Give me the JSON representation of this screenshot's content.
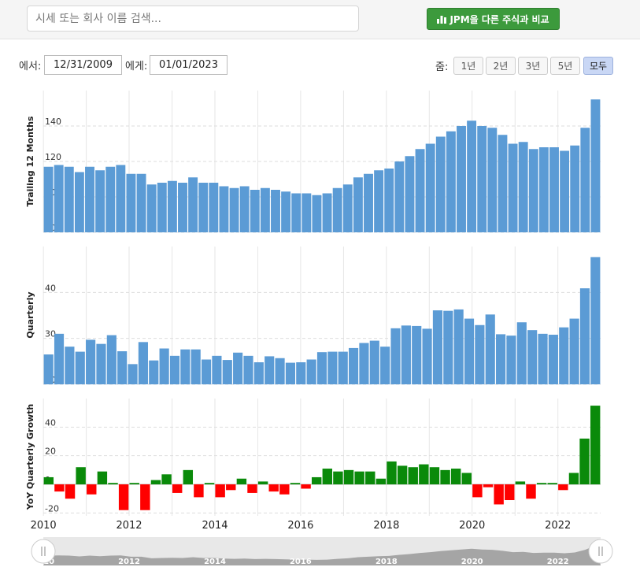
{
  "search": {
    "placeholder": "시세 또는 회사 이름 검색..."
  },
  "compare_button": {
    "label": "JPM을 다른 주식과 비교",
    "icon": "bar-chart-icon"
  },
  "date_range": {
    "from_label": "에서:",
    "from_value": "12/31/2009",
    "to_label": "에게:",
    "to_value": "01/01/2023"
  },
  "zoom": {
    "label": "줌:",
    "buttons": [
      "1년",
      "2년",
      "3년",
      "5년",
      "모두"
    ],
    "active": "모두"
  },
  "colors": {
    "bar": "#5b9bd5",
    "positive": "#0a8a0a",
    "negative": "#ff0000",
    "navigator": "#999999"
  },
  "chart_data": [
    {
      "type": "bar",
      "ylabel": "Trailing 12 Months",
      "ylim": [
        80,
        160
      ],
      "yticks": [
        80,
        100,
        120,
        140
      ],
      "grid": true,
      "x_start": "2009-12-31",
      "x_end": "2022-12-31",
      "values": [
        117,
        118,
        117,
        114,
        117,
        115,
        117,
        118,
        113,
        113,
        107,
        108,
        109,
        108,
        111,
        108,
        108,
        106,
        105,
        106,
        104,
        105,
        104,
        103,
        102,
        102,
        101,
        102,
        105,
        107,
        111,
        113,
        115,
        116,
        120,
        123,
        127,
        130,
        134,
        137,
        140,
        143,
        140,
        139,
        135,
        130,
        131,
        127,
        128,
        128,
        126,
        129,
        139,
        155
      ]
    },
    {
      "type": "bar",
      "ylabel": "Quarterly",
      "ylim": [
        20,
        50
      ],
      "yticks": [
        20,
        30,
        40
      ],
      "grid": true,
      "x_start": "2009-12-31",
      "x_end": "2022-12-31",
      "values": [
        26.5,
        31,
        28.2,
        27.1,
        29.7,
        28.8,
        30.7,
        27.2,
        24.4,
        29.2,
        25.2,
        27.8,
        26.2,
        27.6,
        27.6,
        25.4,
        26.2,
        25.3,
        26.9,
        26.2,
        24.8,
        26.1,
        25.7,
        24.7,
        24.8,
        25.4,
        27.0,
        27.1,
        27.1,
        27.9,
        29.0,
        29.5,
        28.2,
        32.2,
        32.8,
        32.7,
        32.1,
        36.1,
        36.0,
        36.3,
        34.3,
        32.9,
        35.2,
        30.9,
        30.6,
        33.5,
        31.8,
        31.0,
        30.8,
        32.4,
        34.3,
        40.9,
        47.7
      ]
    },
    {
      "type": "bar",
      "ylabel": "YoY Quarterly Growth",
      "ylim": [
        -22,
        60
      ],
      "yticks": [
        -20,
        0,
        20,
        40
      ],
      "grid": true,
      "x_start": "2009-12-31",
      "x_end": "2022-12-31",
      "xticks": [
        "2010",
        "2012",
        "2014",
        "2016",
        "2018",
        "2020",
        "2022"
      ],
      "values": [
        5,
        -5,
        -10,
        12,
        -7,
        9,
        1,
        -18,
        1,
        -18,
        3,
        7,
        -6,
        10,
        -9,
        1,
        -9,
        -4,
        4,
        -6,
        2,
        -5,
        -7,
        1,
        -3,
        5,
        11,
        9,
        10,
        9,
        9,
        4,
        16,
        13,
        12,
        14,
        12,
        10,
        11,
        8,
        -9,
        -2,
        -14,
        -11,
        2,
        -10,
        1,
        1,
        -4,
        8,
        32,
        55
      ]
    }
  ],
  "navigator": {
    "labels": [
      "2010",
      "2012",
      "2014",
      "2016",
      "2018",
      "2020",
      "2022"
    ]
  }
}
